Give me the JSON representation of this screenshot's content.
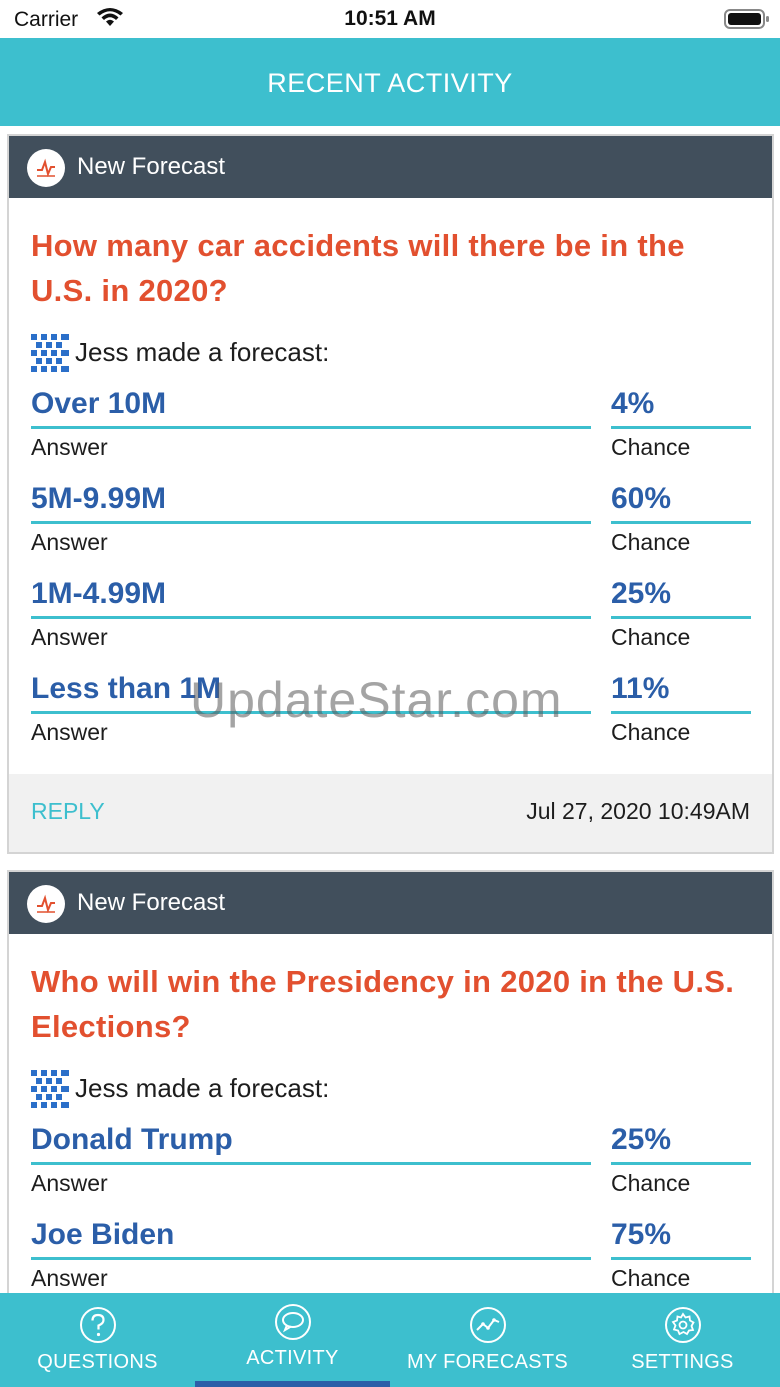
{
  "status_bar": {
    "carrier": "Carrier",
    "time": "10:51 AM"
  },
  "header": {
    "title": "RECENT ACTIVITY"
  },
  "activities": [
    {
      "type_label": "New Forecast",
      "question": "How many car accidents will there be in the U.S. in 2020?",
      "forecaster_text": "Jess made a forecast:",
      "answers": [
        {
          "value": "Over 10M",
          "answer_caption": "Answer",
          "chance": "4%",
          "chance_caption": "Chance"
        },
        {
          "value": "5M-9.99M",
          "answer_caption": "Answer",
          "chance": "60%",
          "chance_caption": "Chance"
        },
        {
          "value": "1M-4.99M",
          "answer_caption": "Answer",
          "chance": "25%",
          "chance_caption": "Chance"
        },
        {
          "value": "Less than 1M",
          "answer_caption": "Answer",
          "chance": "11%",
          "chance_caption": "Chance"
        }
      ],
      "reply_label": "REPLY",
      "timestamp": "Jul 27, 2020 10:49AM"
    },
    {
      "type_label": "New Forecast",
      "question": "Who will win the Presidency in 2020 in the U.S. Elections?",
      "forecaster_text": "Jess made a forecast:",
      "answers": [
        {
          "value": "Donald Trump",
          "answer_caption": "Answer",
          "chance": "25%",
          "chance_caption": "Chance"
        },
        {
          "value": "Joe Biden",
          "answer_caption": "Answer",
          "chance": "75%",
          "chance_caption": "Chance"
        }
      ]
    }
  ],
  "watermark": "UpdateStar.com",
  "tab_bar": {
    "tabs": [
      {
        "label": "QUESTIONS",
        "icon": "question-icon"
      },
      {
        "label": "ACTIVITY",
        "icon": "chat-bubble-icon",
        "active": true
      },
      {
        "label": "MY FORECASTS",
        "icon": "trend-chart-icon"
      },
      {
        "label": "SETTINGS",
        "icon": "gear-icon"
      }
    ]
  },
  "colors": {
    "accent": "#3dbfce",
    "header_dark": "#414f5c",
    "question_red": "#e2502f",
    "answer_blue": "#2b5ea8"
  }
}
